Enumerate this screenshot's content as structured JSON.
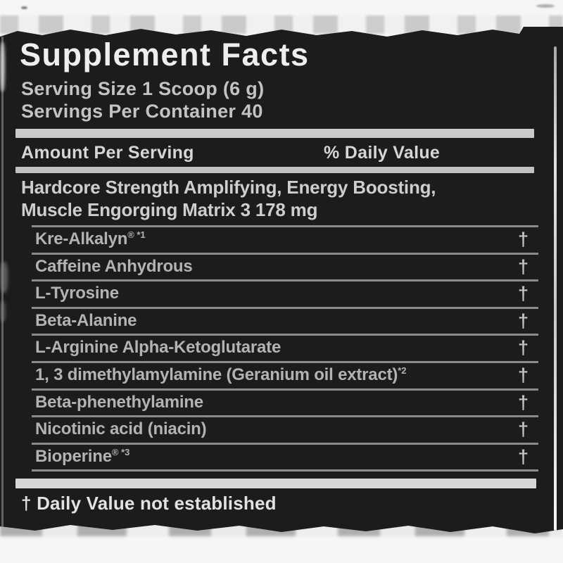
{
  "panel": {
    "title": "Supplement Facts",
    "serving_size": "Serving Size 1 Scoop (6 g)",
    "servings_per_container": "Servings Per Container 40",
    "amount_per_serving_header": "Amount Per Serving",
    "daily_value_header": "% Daily Value",
    "matrix_line1": "Hardcore Strength Amplifying, Energy Boosting,",
    "matrix_line2": "Muscle Engorging Matrix   3 178 mg",
    "rows": [
      {
        "label": "Kre-Alkalyn",
        "sup": "® *1",
        "dv": "†"
      },
      {
        "label": "Caffeine Anhydrous",
        "sup": "",
        "dv": "†"
      },
      {
        "label": "L-Tyrosine",
        "sup": "",
        "dv": "†"
      },
      {
        "label": "Beta-Alanine",
        "sup": "",
        "dv": "†"
      },
      {
        "label": "L-Arginine Alpha-Ketoglutarate",
        "sup": "",
        "dv": "†"
      },
      {
        "label": "1, 3 dimethylamylamine (Geranium oil extract)",
        "sup": "*2",
        "dv": "†"
      },
      {
        "label": "Beta-phenethylamine",
        "sup": "",
        "dv": "†"
      },
      {
        "label": "Nicotinic acid (niacin)",
        "sup": "",
        "dv": "†"
      },
      {
        "label": "Bioperine",
        "sup": "® *3",
        "dv": "†"
      }
    ],
    "footnote": "† Daily Value not established"
  },
  "colors": {
    "panel_background": "#1c1c1c",
    "bar_gray": "#c9c9c9",
    "separator_gray": "#8a8a8a",
    "text_light": "#c3c3c3",
    "title_white": "#eeeeee"
  }
}
